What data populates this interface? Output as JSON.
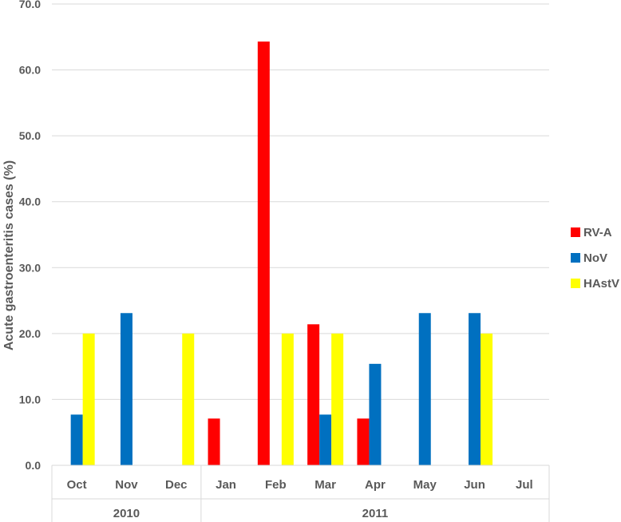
{
  "chart_data": {
    "type": "bar",
    "ylabel": "Acute gastroenteritis cases (%)",
    "ylim": [
      0,
      70
    ],
    "yticks": [
      "0.0",
      "10.0",
      "20.0",
      "30.0",
      "40.0",
      "50.0",
      "60.0",
      "70.0"
    ],
    "categories": [
      "Oct",
      "Nov",
      "Dec",
      "Jan",
      "Feb",
      "Mar",
      "Apr",
      "May",
      "Jun",
      "Jul"
    ],
    "groups": [
      {
        "label": "2010",
        "categories": [
          "Oct",
          "Nov",
          "Dec"
        ]
      },
      {
        "label": "2011",
        "categories": [
          "Jan",
          "Feb",
          "Mar",
          "Apr",
          "May",
          "Jun",
          "Jul"
        ]
      }
    ],
    "series": [
      {
        "name": "RV-A",
        "color": "#ff0000",
        "values": [
          0,
          0,
          0,
          7.1,
          64.3,
          21.4,
          7.1,
          0,
          0,
          0
        ]
      },
      {
        "name": "NoV",
        "color": "#0070c0",
        "values": [
          7.7,
          23.1,
          0,
          0,
          0,
          7.7,
          15.4,
          23.1,
          23.1,
          0
        ]
      },
      {
        "name": "HAstV",
        "color": "#ffff00",
        "values": [
          20.0,
          0,
          20.0,
          0,
          20.0,
          20.0,
          0,
          0,
          20.0,
          0
        ]
      }
    ],
    "grid": true,
    "legend": "right"
  }
}
